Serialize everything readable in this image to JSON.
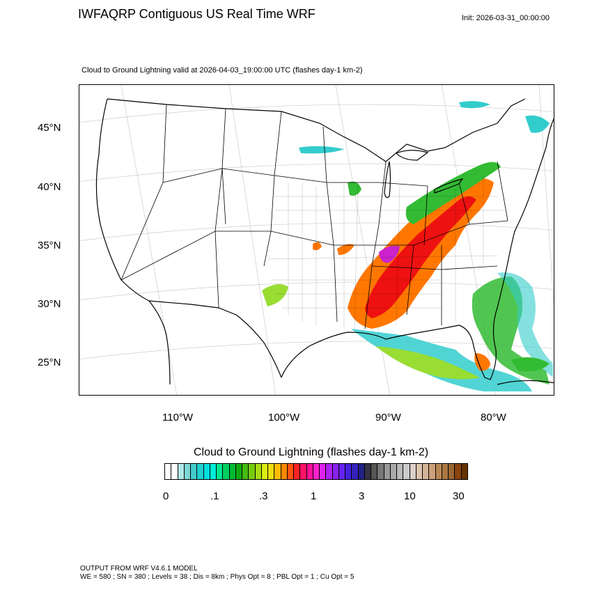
{
  "title": "IWFAQRP Contiguous US Real Time WRF",
  "init": "Init: 2026-03-31_00:00:00",
  "subtitle": "Cloud to Ground Lightning valid at 2026-04-03_19:00:00 UTC   (flashes day-1 km-2)",
  "map": {
    "lat_labels": [
      "45°N",
      "40°N",
      "35°N",
      "30°N",
      "25°N"
    ],
    "lon_labels": [
      "110°W",
      "100°W",
      "90°W",
      "80°W"
    ],
    "colors": {
      "outline": "#000000",
      "graticule": "#bbbbbb",
      "light": "#33cccc",
      "low": "#99dd33",
      "medium": "#33bb33",
      "high": "#ff7700",
      "very_high": "#ee1111",
      "extreme": "#cc22cc"
    }
  },
  "colorbar": {
    "title": "Cloud to Ground Lightning  (flashes day-1 km-2)",
    "labels": [
      "0",
      ".1",
      ".3",
      "1",
      "3",
      "10",
      "30"
    ],
    "colors": [
      "#ffffff",
      "#ffffff",
      "#b0e8e8",
      "#7fd8d8",
      "#44cccc",
      "#22d0d0",
      "#00e0e0",
      "#00eed8",
      "#00e890",
      "#00d060",
      "#00bb33",
      "#11aa11",
      "#44bb11",
      "#77cc11",
      "#aadd11",
      "#ddee11",
      "#eedd11",
      "#ffbb00",
      "#ff8800",
      "#ff5511",
      "#ff2222",
      "#ff1166",
      "#ff1199",
      "#ff22cc",
      "#dd22ee",
      "#aa22ee",
      "#8822ee",
      "#6622ee",
      "#4422dd",
      "#3322bb",
      "#222288",
      "#333344",
      "#555555",
      "#777777",
      "#999999",
      "#aaaaaa",
      "#bbbbbb",
      "#cccccc",
      "#ddd0c8",
      "#dcc4b0",
      "#d4b498",
      "#cca07a",
      "#bb8855",
      "#aa7744",
      "#996633",
      "#884411",
      "#663300"
    ]
  },
  "footer": {
    "line1": "OUTPUT FROM WRF V4.6.1 MODEL",
    "line2": "WE = 580 ; SN = 380 ; Levels = 38 ; Dis = 8km ; Phys Opt = 8 ; PBL Opt = 1 ; Cu Opt = 5"
  }
}
